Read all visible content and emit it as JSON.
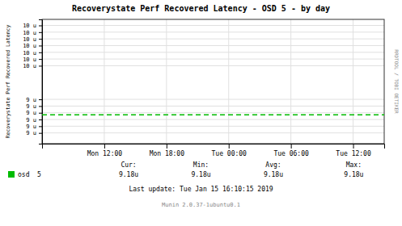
{
  "chart_data": {
    "type": "line",
    "title": "Recoverystate Perf Recovered Latency - OSD 5 - by day",
    "y_label": "Recoverystate Perf Recovered Latency",
    "x": [
      0,
      118800
    ],
    "series": [
      {
        "name": "osd  5",
        "color": "#00BB00",
        "line_style": "dashed",
        "values": [
          9.18e-06,
          9.18e-06
        ]
      }
    ],
    "xlim": [
      0,
      118800
    ],
    "xticks": [
      {
        "value": 21600,
        "label": "Mon 12:00"
      },
      {
        "value": 43200,
        "label": "Mon 18:00"
      },
      {
        "value": 64800,
        "label": "Tue 00:00"
      },
      {
        "value": 86400,
        "label": "Tue 06:00"
      },
      {
        "value": 108000,
        "label": "Tue 12:00"
      }
    ],
    "ylim": [
      8.75e-06,
      1.06e-05
    ],
    "yticks": [
      {
        "value": 8.91e-06,
        "label": "9 u"
      },
      {
        "value": 9.01e-06,
        "label": "9 u"
      },
      {
        "value": 9.11e-06,
        "label": "9 u"
      },
      {
        "value": 9.21e-06,
        "label": "9 u"
      },
      {
        "value": 9.31e-06,
        "label": "9 u"
      },
      {
        "value": 9.41e-06,
        "label": "9 u"
      },
      {
        "value": 9.91e-06,
        "label": "10 u"
      },
      {
        "value": 1.001e-05,
        "label": "10 u"
      },
      {
        "value": 1.011e-05,
        "label": "10 u"
      },
      {
        "value": 1.021e-05,
        "label": "10 u"
      },
      {
        "value": 1.031e-05,
        "label": "10 u"
      },
      {
        "value": 1.041e-05,
        "label": "10 u"
      },
      {
        "value": 1.051e-05,
        "label": "10 u"
      }
    ],
    "grid": true,
    "annotations": [
      "Cur:",
      "Min:",
      "Avg:",
      "Max:",
      "9.18u",
      "9.18u",
      "9.18u",
      "9.18u",
      "Last update: Tue Jan 15 16:10:15 2019",
      "Munin 2.0.37-1ubuntu0.1",
      "RRDTOOL / TOBI OETIKER"
    ]
  }
}
